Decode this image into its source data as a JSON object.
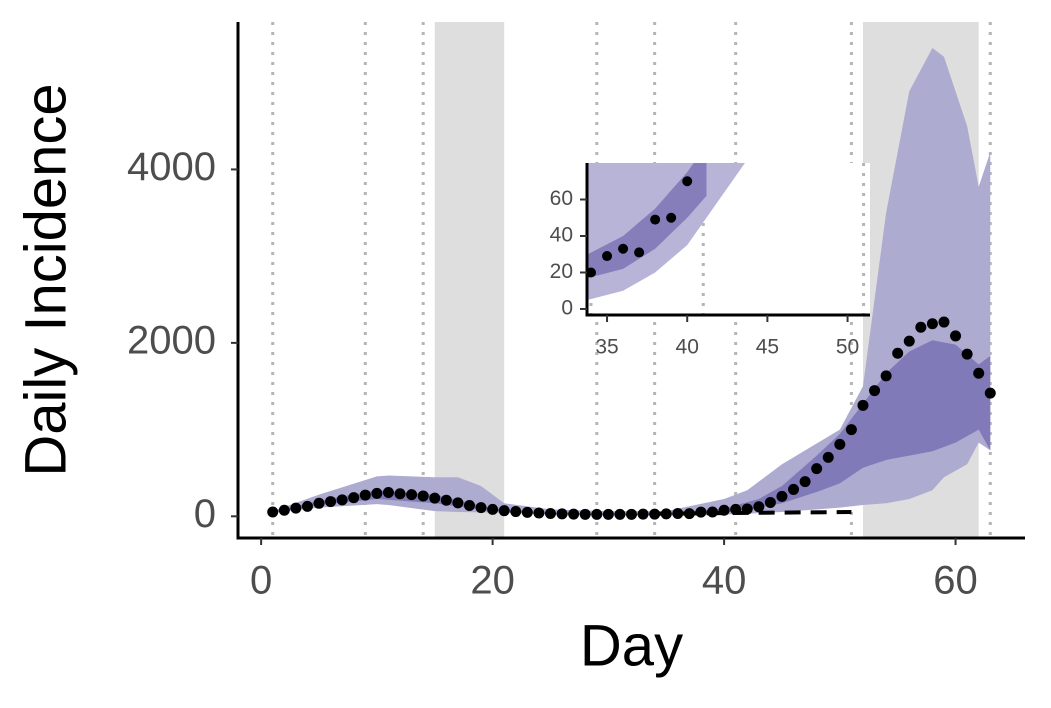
{
  "chart_data": [
    {
      "type": "band-points",
      "xlabel": "Day",
      "ylabel": "Daily Incidence",
      "xlim": [
        -2,
        66
      ],
      "ylim": [
        -250,
        5700
      ],
      "xticks": [
        0,
        20,
        40,
        60
      ],
      "yticks": [
        0,
        2000,
        4000
      ],
      "shaded_spans": [
        [
          15,
          21
        ],
        [
          52,
          62
        ]
      ],
      "vlines": [
        1,
        9,
        14,
        29,
        34,
        41,
        51,
        63
      ],
      "bands": [
        {
          "color": "#aeabd1",
          "x": [
            1,
            5,
            10,
            11,
            15,
            17,
            19,
            21,
            25,
            30,
            35,
            40,
            42,
            45,
            50,
            52,
            54,
            56,
            58,
            59,
            61,
            62,
            63
          ],
          "upper": [
            60,
            250,
            460,
            470,
            450,
            450,
            350,
            150,
            80,
            60,
            60,
            200,
            300,
            600,
            1000,
            1500,
            3500,
            4900,
            5400,
            5300,
            4500,
            3800,
            4200
          ],
          "lower": [
            40,
            100,
            140,
            130,
            60,
            50,
            45,
            40,
            20,
            10,
            10,
            20,
            30,
            50,
            100,
            130,
            150,
            200,
            300,
            450,
            600,
            850,
            760
          ]
        },
        {
          "color": "#817ab8",
          "x": [
            1,
            5,
            10,
            15,
            20,
            25,
            30,
            35,
            40,
            43,
            45,
            48,
            50,
            52,
            54,
            56,
            58,
            60,
            62,
            63
          ],
          "upper": [
            55,
            180,
            300,
            250,
            90,
            40,
            30,
            35,
            90,
            200,
            350,
            700,
            950,
            1300,
            1650,
            1900,
            2030,
            1980,
            1750,
            1850
          ],
          "lower": [
            45,
            130,
            200,
            150,
            60,
            25,
            15,
            15,
            40,
            100,
            150,
            280,
            380,
            560,
            650,
            700,
            750,
            850,
            1000,
            760
          ]
        }
      ],
      "dashed": {
        "color": "#000000",
        "x": [
          34,
          51
        ],
        "values": [
          30,
          50
        ]
      },
      "points": {
        "color": "#000000",
        "x": [
          1,
          2,
          3,
          4,
          5,
          6,
          7,
          8,
          9,
          10,
          11,
          12,
          13,
          14,
          15,
          16,
          17,
          18,
          19,
          20,
          21,
          22,
          23,
          24,
          25,
          26,
          27,
          28,
          29,
          30,
          31,
          32,
          33,
          34,
          35,
          36,
          37,
          38,
          39,
          40,
          41,
          42,
          43,
          44,
          45,
          46,
          47,
          48,
          49,
          50,
          51,
          52,
          53,
          54,
          55,
          56,
          57,
          58,
          59,
          60,
          61,
          62,
          63
        ],
        "values": [
          50,
          70,
          95,
          115,
          150,
          170,
          190,
          215,
          245,
          265,
          275,
          260,
          250,
          235,
          210,
          185,
          155,
          125,
          100,
          80,
          65,
          55,
          45,
          38,
          32,
          28,
          25,
          23,
          22,
          22,
          22,
          23,
          25,
          25,
          28,
          32,
          31,
          49,
          50,
          70,
          80,
          85,
          110,
          160,
          230,
          310,
          400,
          550,
          680,
          830,
          1000,
          1280,
          1450,
          1620,
          1880,
          2020,
          2180,
          2220,
          2240,
          2080,
          1870,
          1650,
          1420
        ]
      }
    },
    {
      "type": "band-points",
      "xlim": [
        33.75,
        51.4
      ],
      "ylim": [
        -3.3,
        80
      ],
      "xticks": [
        35,
        40,
        45,
        50
      ],
      "yticks": [
        0,
        20,
        40,
        60
      ],
      "vlines": [
        34,
        41,
        51
      ],
      "bands": [
        {
          "color": "#b7b4d8",
          "x": [
            33.8,
            36,
            38,
            40,
            42,
            43.6
          ],
          "upper": [
            85,
            95,
            110,
            130,
            150,
            170
          ],
          "lower": [
            5,
            10,
            20,
            35,
            60,
            80
          ]
        },
        {
          "color": "#857eba",
          "x": [
            33.8,
            36,
            38,
            40,
            41.2
          ],
          "upper": [
            30,
            40,
            55,
            75,
            90
          ],
          "lower": [
            17,
            22,
            33,
            50,
            62
          ]
        }
      ],
      "points": {
        "color": "#000000",
        "x": [
          34,
          35,
          36,
          37,
          38,
          39,
          40
        ],
        "values": [
          20,
          29,
          33,
          31,
          49,
          50,
          70
        ]
      }
    }
  ]
}
